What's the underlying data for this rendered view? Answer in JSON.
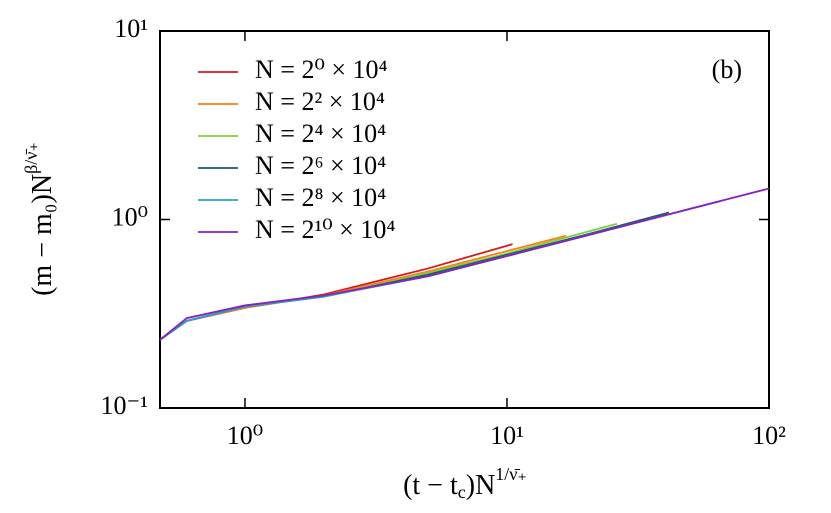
{
  "chart_data": {
    "type": "line",
    "xlabel": {
      "base": "(t − t",
      "sub": "c",
      "after": ")N",
      "exponent": "1/ν̄₊"
    },
    "ylabel": {
      "base": "(m − m₀)N",
      "exponent": "β/ν̄₊"
    },
    "annotation": "(b)",
    "xlog": true,
    "ylog": true,
    "xlim": [
      0.474,
      100
    ],
    "ylim": [
      0.1,
      10
    ],
    "xticks": [
      {
        "value": 1,
        "label": "10⁰"
      },
      {
        "value": 10,
        "label": "10¹"
      },
      {
        "value": 100,
        "label": "10²"
      }
    ],
    "yticks": [
      {
        "value": 0.1,
        "label": "10⁻¹"
      },
      {
        "value": 1,
        "label": "10⁰"
      },
      {
        "value": 10,
        "label": "10¹"
      }
    ],
    "legend": "upper left",
    "series": [
      {
        "name": "N = 2⁰ × 10⁴",
        "color": "#d7191c",
        "x": [
          0.474,
          0.6,
          1,
          2,
          5,
          10.5
        ],
        "values": [
          0.23,
          0.29,
          0.34,
          0.4,
          0.55,
          0.74
        ]
      },
      {
        "name": "N = 2² × 10⁴",
        "color": "#ff7f0e",
        "x": [
          0.474,
          0.6,
          1,
          2,
          5,
          10,
          16.8
        ],
        "values": [
          0.23,
          0.29,
          0.34,
          0.395,
          0.53,
          0.68,
          0.82
        ]
      },
      {
        "name": "N = 2⁴ × 10⁴",
        "color": "#7fd13b",
        "x": [
          0.474,
          0.6,
          1,
          2,
          5,
          10,
          26.3
        ],
        "values": [
          0.23,
          0.29,
          0.345,
          0.39,
          0.52,
          0.66,
          0.95
        ]
      },
      {
        "name": "N = 2⁶ × 10⁴",
        "color": "#1a5e6b",
        "x": [
          0.474,
          0.6,
          1,
          2,
          5,
          10,
          20,
          41.5
        ],
        "values": [
          0.23,
          0.29,
          0.345,
          0.39,
          0.51,
          0.65,
          0.83,
          1.09
        ]
      },
      {
        "name": "N = 2⁸ × 10⁴",
        "color": "#2aa0c8",
        "x": [
          0.474,
          0.6,
          1,
          2,
          5,
          10,
          20,
          65
        ],
        "values": [
          0.23,
          0.29,
          0.345,
          0.39,
          0.5,
          0.64,
          0.82,
          1.25
        ]
      },
      {
        "name": "N = 2¹⁰ × 10⁴",
        "color": "#8a1fc4",
        "x": [
          0.474,
          0.6,
          1,
          2,
          5,
          10,
          20,
          50,
          100
        ],
        "values": [
          0.23,
          0.3,
          0.35,
          0.395,
          0.5,
          0.64,
          0.82,
          1.14,
          1.46
        ]
      }
    ]
  }
}
